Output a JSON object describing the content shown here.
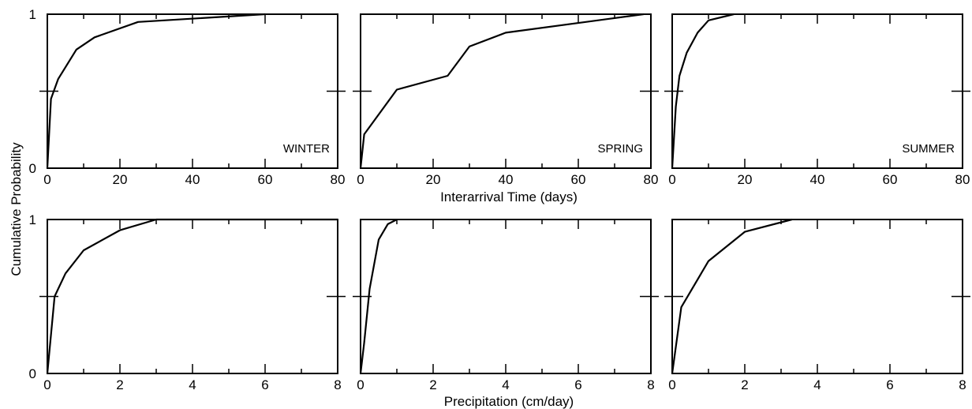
{
  "figure": {
    "ylabel": "Cumulative Probability",
    "top_xlabel": "Interarrival Time (days)",
    "bottom_xlabel": "Precipitation (cm/day)"
  },
  "chart_data": [
    {
      "type": "line",
      "row": 0,
      "col": 0,
      "season_label": "WINTER",
      "xlim": [
        0,
        80
      ],
      "ylim": [
        0,
        1
      ],
      "x_ticks": [
        0,
        20,
        40,
        60,
        80
      ],
      "y_ticks": [
        0,
        0.5,
        1
      ],
      "y_tick_labels": [
        "0",
        "1"
      ],
      "x": [
        0,
        1,
        3,
        8,
        13,
        25,
        60
      ],
      "y": [
        0,
        0.45,
        0.58,
        0.77,
        0.85,
        0.95,
        1.0
      ]
    },
    {
      "type": "line",
      "row": 0,
      "col": 1,
      "season_label": "SPRING",
      "xlim": [
        0,
        80
      ],
      "ylim": [
        0,
        1
      ],
      "x_ticks": [
        0,
        20,
        40,
        60,
        80
      ],
      "y_ticks": [
        0,
        0.5,
        1
      ],
      "y_tick_labels": [],
      "x": [
        0,
        1,
        10,
        24,
        30,
        40,
        78
      ],
      "y": [
        0,
        0.22,
        0.51,
        0.6,
        0.79,
        0.88,
        1.0
      ]
    },
    {
      "type": "line",
      "row": 0,
      "col": 2,
      "season_label": "SUMMER",
      "xlim": [
        0,
        80
      ],
      "ylim": [
        0,
        1
      ],
      "x_ticks": [
        0,
        20,
        40,
        60,
        80
      ],
      "y_ticks": [
        0,
        0.5,
        1
      ],
      "y_tick_labels": [],
      "x": [
        0,
        1,
        2,
        4,
        7,
        10,
        17
      ],
      "y": [
        0,
        0.4,
        0.6,
        0.75,
        0.88,
        0.96,
        1.0
      ]
    },
    {
      "type": "line",
      "row": 1,
      "col": 0,
      "season_label": "",
      "xlim": [
        0,
        8
      ],
      "ylim": [
        0,
        1
      ],
      "x_ticks": [
        0,
        2,
        4,
        6,
        8
      ],
      "y_ticks": [
        0,
        0.5,
        1
      ],
      "y_tick_labels": [
        "0",
        "1"
      ],
      "x": [
        0,
        0.2,
        0.5,
        1.0,
        2.0,
        3.0,
        8.0
      ],
      "y": [
        0,
        0.5,
        0.65,
        0.8,
        0.93,
        1.0,
        1.0
      ]
    },
    {
      "type": "line",
      "row": 1,
      "col": 1,
      "season_label": "",
      "xlim": [
        0,
        8
      ],
      "ylim": [
        0,
        1
      ],
      "x_ticks": [
        0,
        2,
        4,
        6,
        8
      ],
      "y_ticks": [
        0,
        0.5,
        1
      ],
      "y_tick_labels": [],
      "x": [
        0,
        0.1,
        0.25,
        0.5,
        0.75,
        1.0
      ],
      "y": [
        0,
        0.2,
        0.55,
        0.87,
        0.97,
        1.0
      ]
    },
    {
      "type": "line",
      "row": 1,
      "col": 2,
      "season_label": "",
      "xlim": [
        0,
        8
      ],
      "ylim": [
        0,
        1
      ],
      "x_ticks": [
        0,
        2,
        4,
        6,
        8
      ],
      "y_ticks": [
        0,
        0.5,
        1
      ],
      "y_tick_labels": [],
      "x": [
        0,
        0.25,
        1.0,
        2.0,
        3.3
      ],
      "y": [
        0,
        0.43,
        0.73,
        0.92,
        1.0
      ]
    }
  ]
}
